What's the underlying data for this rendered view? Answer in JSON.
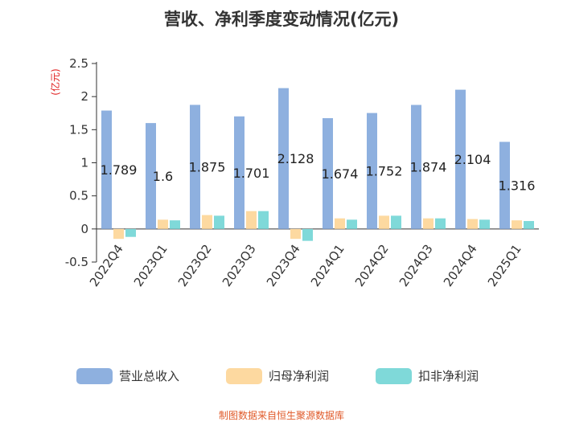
{
  "chart_data": {
    "type": "bar",
    "title": "营收、净利季度变动情况(亿元)",
    "ylabel": "(亿元)",
    "categories": [
      "2022Q4",
      "2023Q1",
      "2023Q2",
      "2023Q3",
      "2023Q4",
      "2024Q1",
      "2024Q2",
      "2024Q3",
      "2024Q4",
      "2025Q1"
    ],
    "y_ticks": [
      "-0.5",
      "0",
      "0.5",
      "1",
      "1.5",
      "2",
      "2.5"
    ],
    "ylim": [
      -0.5,
      2.5
    ],
    "grid": false,
    "legend_position": "bottom",
    "series": [
      {
        "name": "营业总收入",
        "color": "#8eb0df",
        "values": [
          1.789,
          1.6,
          1.875,
          1.701,
          2.128,
          1.674,
          1.752,
          1.874,
          2.104,
          1.316
        ],
        "labels": [
          "1.789",
          "1.6",
          "1.875",
          "1.701",
          "2.128",
          "1.674",
          "1.752",
          "1.874",
          "2.104",
          "1.316"
        ]
      },
      {
        "name": "归母净利润",
        "color": "#fdd9a0",
        "values": [
          -0.15,
          0.14,
          0.21,
          0.27,
          -0.15,
          0.16,
          0.2,
          0.16,
          0.15,
          0.13
        ]
      },
      {
        "name": "扣非净利润",
        "color": "#7fd9d9",
        "values": [
          -0.12,
          0.13,
          0.2,
          0.27,
          -0.18,
          0.14,
          0.2,
          0.16,
          0.14,
          0.12
        ]
      }
    ]
  },
  "source": "制图数据来自恒生聚源数据库"
}
